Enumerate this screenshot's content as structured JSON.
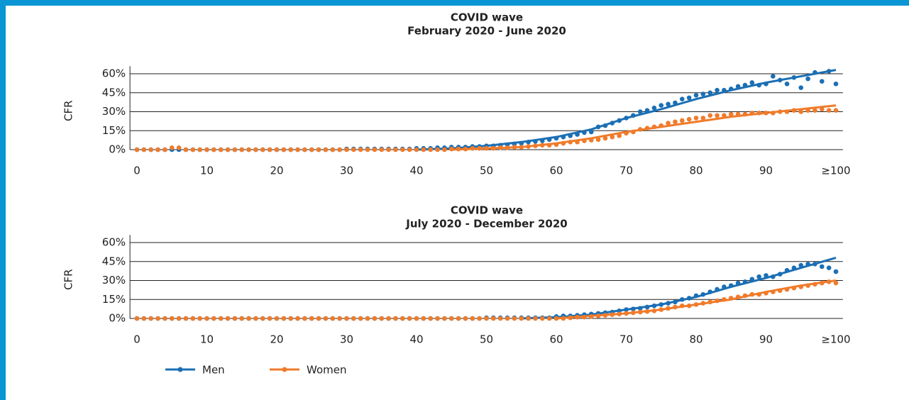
{
  "chart_data": [
    {
      "type": "scatter",
      "title": "COVID wave",
      "subtitle": "February 2020 - June 2020",
      "y_label": "CFR",
      "x": [
        0,
        1,
        2,
        3,
        4,
        5,
        6,
        7,
        8,
        9,
        10,
        11,
        12,
        13,
        14,
        15,
        16,
        17,
        18,
        19,
        20,
        21,
        22,
        23,
        24,
        25,
        26,
        27,
        28,
        29,
        30,
        31,
        32,
        33,
        34,
        35,
        36,
        37,
        38,
        39,
        40,
        41,
        42,
        43,
        44,
        45,
        46,
        47,
        48,
        49,
        50,
        51,
        52,
        53,
        54,
        55,
        56,
        57,
        58,
        59,
        60,
        61,
        62,
        63,
        64,
        65,
        66,
        67,
        68,
        69,
        70,
        71,
        72,
        73,
        74,
        75,
        76,
        77,
        78,
        79,
        80,
        81,
        82,
        83,
        84,
        85,
        86,
        87,
        88,
        89,
        90,
        91,
        92,
        93,
        94,
        95,
        96,
        97,
        98,
        99,
        100
      ],
      "xlim": [
        -1,
        101
      ],
      "xticks": [
        0,
        10,
        20,
        30,
        40,
        50,
        60,
        70,
        80,
        90,
        {
          "value": 100,
          "label": "≥100"
        }
      ],
      "ylim": [
        0,
        66
      ],
      "yticks": [
        {
          "value": 0,
          "label": "0%"
        },
        {
          "value": 15,
          "label": "15%"
        },
        {
          "value": 30,
          "label": "30%"
        },
        {
          "value": 45,
          "label": "45%"
        },
        {
          "value": 60,
          "label": "60%"
        }
      ],
      "grid": true,
      "series": [
        {
          "color": "#1b6fb4",
          "values": [
            0,
            0,
            0,
            0,
            0,
            0,
            0,
            0,
            0,
            0,
            0,
            0,
            0,
            0,
            0,
            0,
            0,
            0,
            0,
            0,
            0,
            0,
            0,
            0,
            0,
            0,
            0,
            0,
            0,
            0,
            0.5,
            0.5,
            0.5,
            0.5,
            0.5,
            0.5,
            0.5,
            0.5,
            0.5,
            0.5,
            1,
            1,
            1,
            1.5,
            1.5,
            2,
            2,
            2,
            2.5,
            2.5,
            3,
            3,
            3.5,
            4,
            4.5,
            5,
            6,
            6.5,
            7,
            8,
            9,
            10,
            11,
            12,
            13.5,
            14,
            18,
            19,
            21,
            23,
            25,
            27,
            30,
            31,
            33,
            35,
            36,
            37,
            40,
            41,
            43,
            44,
            45,
            47,
            47,
            48,
            50,
            51,
            53,
            51,
            52,
            58,
            55,
            52,
            57,
            49,
            56,
            61,
            54,
            62,
            52
          ],
          "fit_x": [
            40,
            45,
            50,
            55,
            60,
            65,
            70,
            75,
            80,
            85,
            90,
            95,
            100
          ],
          "fit": [
            0,
            1,
            3,
            6,
            10,
            16,
            25,
            32,
            40,
            47,
            53,
            58,
            63
          ]
        },
        {
          "color": "#f07b2b",
          "values": [
            0,
            0,
            0,
            0,
            0,
            1.5,
            1.5,
            0,
            0,
            0,
            0,
            0,
            0,
            0,
            0,
            0,
            0,
            0,
            0,
            0,
            0,
            0,
            0,
            0,
            0,
            0,
            0,
            0,
            0,
            0,
            0,
            0,
            0,
            0,
            0,
            0,
            0,
            0,
            0,
            0,
            0,
            0,
            0,
            0,
            0,
            0.5,
            0.5,
            0.5,
            1,
            1,
            1,
            1,
            1.5,
            1.5,
            2,
            2,
            2.5,
            3,
            3.5,
            3.5,
            4,
            5,
            6,
            6,
            7,
            7.5,
            8,
            9,
            10,
            11,
            13,
            14,
            16,
            17,
            18,
            19,
            21,
            22,
            23,
            24,
            25,
            25,
            27,
            27,
            27,
            28,
            28,
            28,
            29,
            29,
            29,
            29,
            30,
            30,
            31,
            30,
            31,
            31,
            32,
            31,
            31
          ],
          "fit_x": [
            45,
            50,
            55,
            60,
            65,
            70,
            75,
            80,
            85,
            90,
            95,
            100
          ],
          "fit": [
            0,
            1,
            2,
            5,
            9,
            14,
            18,
            22,
            26,
            29,
            32,
            35
          ]
        }
      ]
    },
    {
      "type": "scatter",
      "title": "COVID wave",
      "subtitle": "July 2020 - December 2020",
      "y_label": "CFR",
      "x": [
        0,
        1,
        2,
        3,
        4,
        5,
        6,
        7,
        8,
        9,
        10,
        11,
        12,
        13,
        14,
        15,
        16,
        17,
        18,
        19,
        20,
        21,
        22,
        23,
        24,
        25,
        26,
        27,
        28,
        29,
        30,
        31,
        32,
        33,
        34,
        35,
        36,
        37,
        38,
        39,
        40,
        41,
        42,
        43,
        44,
        45,
        46,
        47,
        48,
        49,
        50,
        51,
        52,
        53,
        54,
        55,
        56,
        57,
        58,
        59,
        60,
        61,
        62,
        63,
        64,
        65,
        66,
        67,
        68,
        69,
        70,
        71,
        72,
        73,
        74,
        75,
        76,
        77,
        78,
        79,
        80,
        81,
        82,
        83,
        84,
        85,
        86,
        87,
        88,
        89,
        90,
        91,
        92,
        93,
        94,
        95,
        96,
        97,
        98,
        99,
        100
      ],
      "xlim": [
        -1,
        101
      ],
      "xticks": [
        0,
        10,
        20,
        30,
        40,
        50,
        60,
        70,
        80,
        90,
        {
          "value": 100,
          "label": "≥100"
        }
      ],
      "ylim": [
        0,
        66
      ],
      "yticks": [
        {
          "value": 0,
          "label": "0%"
        },
        {
          "value": 15,
          "label": "15%"
        },
        {
          "value": 30,
          "label": "30%"
        },
        {
          "value": 45,
          "label": "45%"
        },
        {
          "value": 60,
          "label": "60%"
        }
      ],
      "grid": true,
      "series": [
        {
          "name": "Men",
          "color": "#1b6fb4",
          "values": [
            0,
            0,
            0,
            0,
            0,
            0,
            0,
            0,
            0,
            0,
            0,
            0,
            0,
            0,
            0,
            0,
            0,
            0,
            0,
            0,
            0,
            0,
            0,
            0,
            0,
            0,
            0,
            0,
            0,
            0,
            0,
            0,
            0,
            0,
            0,
            0,
            0,
            0,
            0,
            0,
            0,
            0,
            0,
            0,
            0,
            0,
            0,
            0,
            0,
            0,
            0.5,
            0.5,
            0.5,
            0.5,
            0.5,
            0.5,
            0.5,
            0.5,
            0.5,
            0.5,
            1.5,
            2,
            2,
            2.5,
            3,
            3.5,
            4,
            4.5,
            5,
            6,
            7,
            7.5,
            8,
            9,
            10,
            11,
            12,
            13,
            15,
            16,
            18,
            19,
            21,
            23,
            25,
            26,
            28,
            29,
            31,
            33,
            34,
            33,
            35,
            38,
            40,
            42,
            43,
            43,
            41,
            40,
            37
          ],
          "fit_x": [
            55,
            60,
            65,
            70,
            75,
            80,
            85,
            90,
            95,
            100
          ],
          "fit": [
            0,
            1,
            3,
            7,
            11,
            17,
            25,
            32,
            40,
            48
          ]
        },
        {
          "name": "Women",
          "color": "#f07b2b",
          "values": [
            0,
            0,
            0,
            0,
            0,
            0,
            0,
            0,
            0,
            0,
            0,
            0,
            0,
            0,
            0,
            0,
            0,
            0,
            0,
            0,
            0,
            0,
            0,
            0,
            0,
            0,
            0,
            0,
            0,
            0,
            0,
            0,
            0,
            0,
            0,
            0,
            0,
            0,
            0,
            0,
            0,
            0,
            0,
            0,
            0,
            0,
            0,
            0,
            0,
            0,
            0,
            0,
            0,
            0,
            0,
            0,
            0,
            0,
            0,
            0,
            0,
            0,
            0.5,
            1,
            1,
            1.5,
            2,
            2.5,
            3,
            3.5,
            4,
            4.5,
            5,
            5.5,
            6,
            7,
            8,
            9,
            10,
            10,
            11,
            12,
            13,
            14,
            15,
            16,
            17,
            18,
            19,
            19,
            20,
            21,
            22,
            23,
            24,
            25,
            26,
            27,
            28,
            29,
            28
          ],
          "fit_x": [
            60,
            65,
            70,
            75,
            80,
            85,
            90,
            95,
            100
          ],
          "fit": [
            0,
            2,
            4,
            7,
            11,
            15,
            21,
            26,
            30
          ]
        }
      ]
    }
  ]
}
